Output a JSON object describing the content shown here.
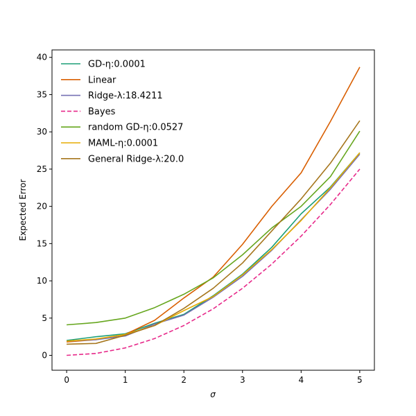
{
  "chart_data": {
    "type": "line",
    "title": "",
    "xlabel": "σ",
    "ylabel": "Expected Error",
    "xlim": [
      -0.25,
      5.25
    ],
    "ylim": [
      -2,
      41
    ],
    "xticks": [
      0,
      1,
      2,
      3,
      4,
      5
    ],
    "yticks": [
      0,
      5,
      10,
      15,
      20,
      25,
      30,
      35,
      40
    ],
    "grid": false,
    "legend": "top-left",
    "series": [
      {
        "name": "GD-η:0.0001",
        "color": "#1b9e77",
        "dash": "solid",
        "x": [
          0,
          0.5,
          1,
          1.5,
          2,
          2.5,
          3,
          3.5,
          4,
          4.5,
          5
        ],
        "y": [
          2.0,
          2.5,
          2.9,
          4.3,
          5.5,
          8.0,
          10.9,
          14.5,
          19.0,
          22.6,
          27.2
        ]
      },
      {
        "name": "Linear",
        "color": "#d95f02",
        "dash": "solid",
        "x": [
          0,
          0.5,
          1,
          1.5,
          2,
          2.5,
          3,
          3.5,
          4,
          4.5,
          5
        ],
        "y": [
          1.8,
          2.1,
          2.8,
          4.7,
          7.7,
          10.5,
          14.9,
          20.0,
          24.5,
          31.4,
          38.7
        ]
      },
      {
        "name": "Ridge-λ:18.4211",
        "color": "#7570b3",
        "dash": "solid",
        "x": [
          0,
          0.5,
          1,
          1.5,
          2,
          2.5,
          3,
          3.5,
          4,
          4.5,
          5
        ],
        "y": [
          1.9,
          2.1,
          2.6,
          4.2,
          5.4,
          7.8,
          10.6,
          14.1,
          18.2,
          22.3,
          27.0
        ]
      },
      {
        "name": "Bayes",
        "color": "#e7298a",
        "dash": "dashed",
        "x": [
          0,
          0.5,
          1,
          1.5,
          2,
          2.5,
          3,
          3.5,
          4,
          4.5,
          5
        ],
        "y": [
          0.0,
          0.25,
          1.0,
          2.25,
          4.0,
          6.25,
          9.0,
          12.25,
          16.0,
          20.25,
          25.0
        ]
      },
      {
        "name": "random GD-η:0.0527",
        "color": "#66a61e",
        "dash": "solid",
        "x": [
          0,
          0.5,
          1,
          1.5,
          2,
          2.5,
          3,
          3.5,
          4,
          4.5,
          5
        ],
        "y": [
          4.1,
          4.4,
          5.0,
          6.4,
          8.2,
          10.4,
          13.5,
          17.1,
          20.0,
          24.0,
          30.1
        ]
      },
      {
        "name": "MAML-η:0.0001",
        "color": "#e6ab02",
        "dash": "solid",
        "x": [
          0,
          0.5,
          1,
          1.5,
          2,
          2.5,
          3,
          3.5,
          4,
          4.5,
          5
        ],
        "y": [
          1.9,
          2.2,
          2.8,
          4.0,
          6.0,
          7.9,
          10.8,
          14.2,
          18.1,
          22.5,
          27.2
        ]
      },
      {
        "name": "General Ridge-λ:20.0",
        "color": "#a6761d",
        "dash": "solid",
        "x": [
          0,
          0.5,
          1,
          1.5,
          2,
          2.5,
          3,
          3.5,
          4,
          4.5,
          5
        ],
        "y": [
          1.5,
          1.6,
          2.7,
          4.0,
          6.3,
          9.0,
          12.4,
          16.7,
          21.0,
          25.8,
          31.5
        ]
      }
    ]
  }
}
